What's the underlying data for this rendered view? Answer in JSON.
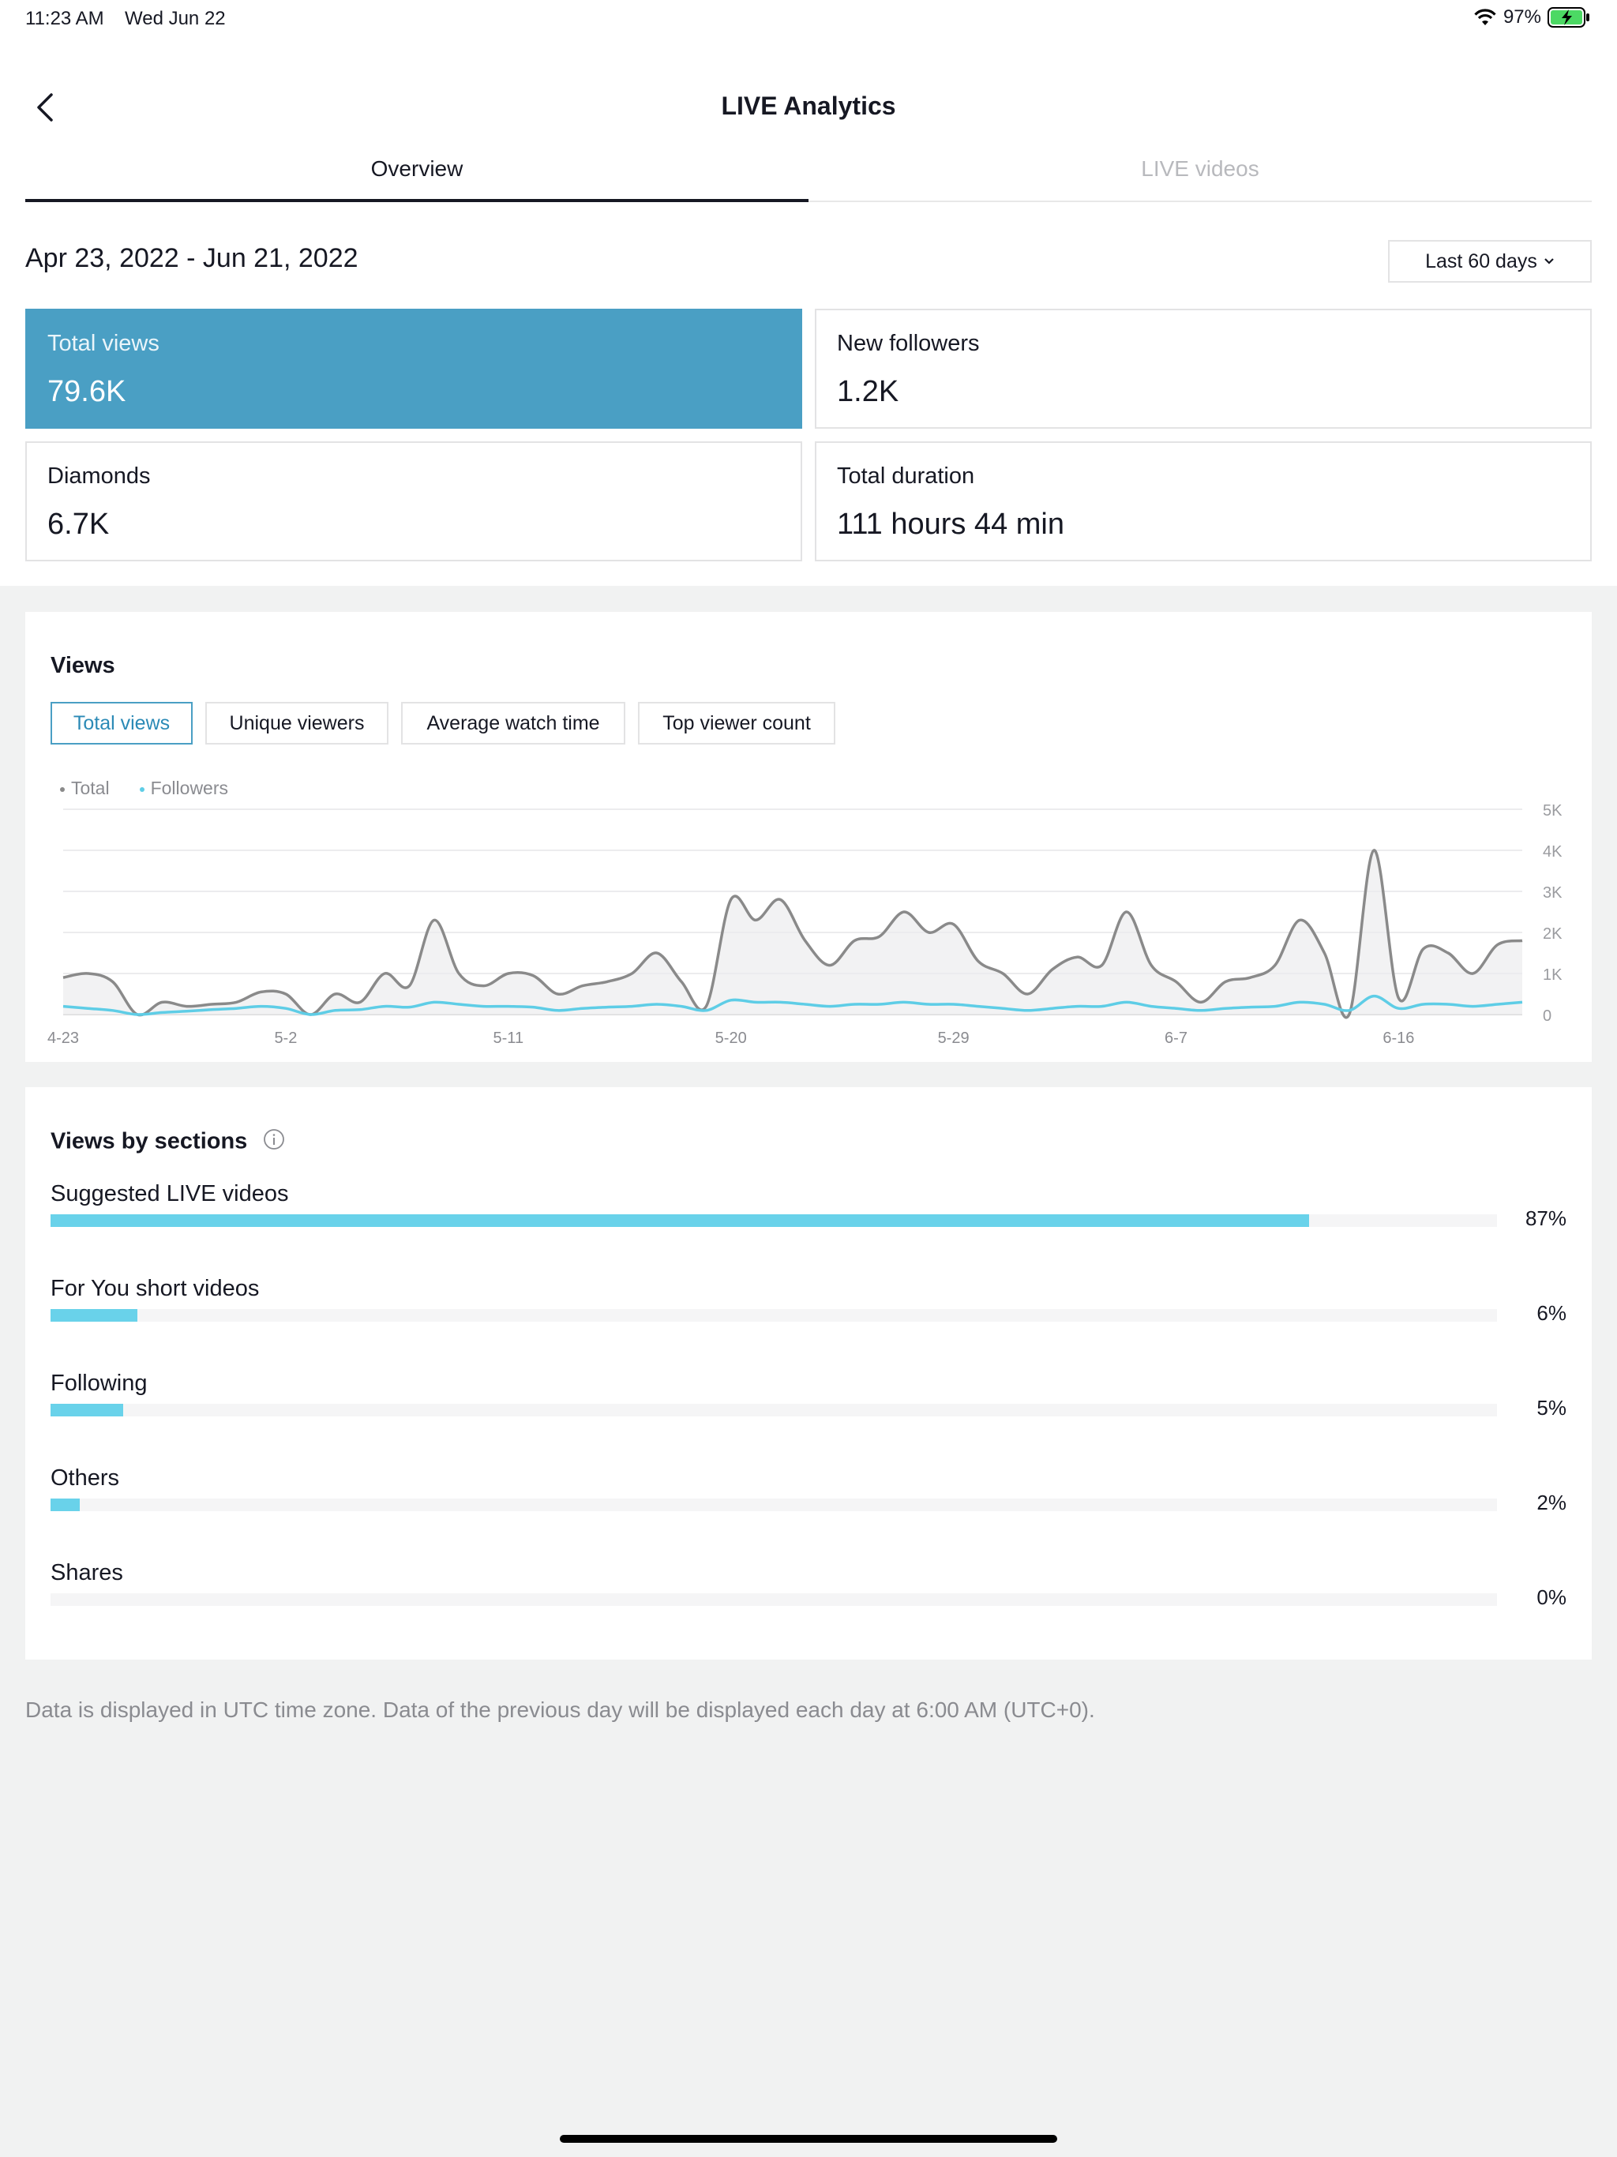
{
  "status_bar": {
    "time": "11:23 AM",
    "date": "Wed Jun 22",
    "battery": "97%"
  },
  "nav": {
    "title": "LIVE Analytics"
  },
  "tabs": [
    {
      "label": "Overview"
    },
    {
      "label": "LIVE videos"
    }
  ],
  "date_range": "Apr 23, 2022 - Jun 21, 2022",
  "range_select": {
    "label": "Last 60 days"
  },
  "kpis": [
    {
      "label": "Total views",
      "value": "79.6K"
    },
    {
      "label": "New followers",
      "value": "1.2K"
    },
    {
      "label": "Diamonds",
      "value": "6.7K"
    },
    {
      "label": "Total duration",
      "value": "111 hours 44 min"
    }
  ],
  "views_card": {
    "title": "Views",
    "metric_tabs": [
      "Total views",
      "Unique viewers",
      "Average watch time",
      "Top viewer count"
    ]
  },
  "chart_data": {
    "type": "line",
    "legend": [
      "Total",
      "Followers"
    ],
    "x_tick_labels": [
      "4-23",
      "5-2",
      "5-11",
      "5-20",
      "5-29",
      "6-7",
      "6-16"
    ],
    "y_tick_labels": [
      "5K",
      "4K",
      "3K",
      "2K",
      "1K",
      "0"
    ],
    "ylim": [
      0,
      5000
    ],
    "grid": true,
    "series": [
      {
        "name": "Total",
        "color": "#8a8a8a",
        "values": [
          900,
          1000,
          800,
          0,
          300,
          200,
          250,
          300,
          550,
          500,
          0,
          500,
          300,
          1000,
          700,
          2300,
          1000,
          700,
          1000,
          950,
          500,
          700,
          800,
          1000,
          1500,
          800,
          200,
          2800,
          2300,
          2800,
          1800,
          1200,
          1800,
          1900,
          2500,
          2000,
          2200,
          1300,
          1000,
          500,
          1100,
          1400,
          1200,
          2500,
          1200,
          800,
          300,
          800,
          900,
          1200,
          2300,
          1500,
          0,
          4000,
          400,
          1600,
          1500,
          1000,
          1700,
          1800
        ]
      },
      {
        "name": "Followers",
        "color": "#5ecde6",
        "values": [
          200,
          150,
          100,
          0,
          50,
          80,
          120,
          150,
          200,
          150,
          0,
          100,
          120,
          200,
          180,
          300,
          250,
          200,
          200,
          180,
          100,
          150,
          180,
          200,
          250,
          200,
          100,
          350,
          300,
          300,
          250,
          200,
          250,
          250,
          300,
          250,
          250,
          200,
          150,
          100,
          150,
          200,
          200,
          300,
          200,
          150,
          100,
          150,
          180,
          200,
          300,
          250,
          100,
          450,
          150,
          250,
          250,
          200,
          250,
          300
        ]
      }
    ]
  },
  "sections_card": {
    "title": "Views by sections",
    "rows": [
      {
        "label": "Suggested LIVE videos",
        "pct": "87%",
        "value": 87
      },
      {
        "label": "For You short videos",
        "pct": "6%",
        "value": 6
      },
      {
        "label": "Following",
        "pct": "5%",
        "value": 5
      },
      {
        "label": "Others",
        "pct": "2%",
        "value": 2
      },
      {
        "label": "Shares",
        "pct": "0%",
        "value": 0
      }
    ]
  },
  "footnote": "Data is displayed in UTC time zone. Data of the previous day will be displayed each day at 6:00 AM (UTC+0).",
  "colors": {
    "accent": "#4a9fc4",
    "bar": "#69d2ea",
    "total_line": "#8a8a8a",
    "followers_line": "#5ecde6"
  }
}
